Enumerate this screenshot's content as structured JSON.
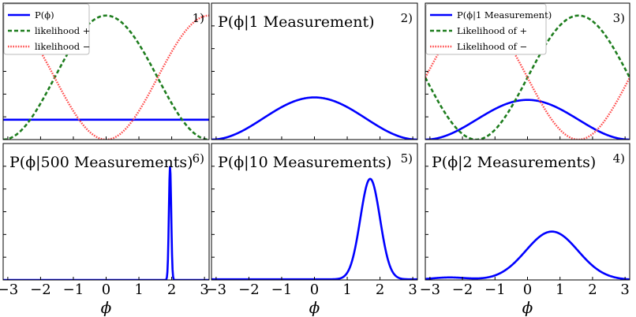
{
  "colors": {
    "posterior": "#0000ff",
    "likelihood_plus": "#1e7d1e",
    "likelihood_minus": "#ff4a4a"
  },
  "chart_data": [
    {
      "panel": "1)",
      "type": "line",
      "title": "",
      "xlim": [
        -3.14159,
        3.14159
      ],
      "ylim": [
        0,
        1.1
      ],
      "legend": {
        "placement": "top-left",
        "entries": [
          "P(ϕ)",
          "likelihood +",
          "likelihood −"
        ]
      },
      "series": [
        {
          "name": "P(ϕ)",
          "style": "solid",
          "color": "#0000ff",
          "kind": "constant",
          "value": 0.16
        },
        {
          "name": "likelihood +",
          "style": "dashed",
          "color": "#1e7d1e",
          "kind": "cos_plus"
        },
        {
          "name": "likelihood −",
          "style": "dotted",
          "color": "#ff4a4a",
          "kind": "cos_minus"
        }
      ]
    },
    {
      "panel": "2)",
      "type": "line",
      "title": "P(ϕ|1 Measurement)",
      "xlim": [
        -3.14159,
        3.14159
      ],
      "ylim": [
        0,
        1.1
      ],
      "series": [
        {
          "style": "solid",
          "color": "#0000ff",
          "kind": "posterior_cos",
          "scale": 0.34
        }
      ]
    },
    {
      "panel": "3)",
      "type": "line",
      "title": "",
      "xlim": [
        -3.14159,
        3.14159
      ],
      "ylim": [
        0,
        1.1
      ],
      "legend": {
        "placement": "top-left",
        "entries": [
          "P(ϕ|1 Measurement)",
          "Likelihood of +",
          "Likelihood of −"
        ]
      },
      "series": [
        {
          "name": "P(ϕ|1 Measurement)",
          "style": "solid",
          "color": "#0000ff",
          "kind": "posterior_cos",
          "scale": 0.32
        },
        {
          "name": "Likelihood of +",
          "style": "dashed",
          "color": "#1e7d1e",
          "kind": "sin_plus"
        },
        {
          "name": "Likelihood of −",
          "style": "dotted",
          "color": "#ff4a4a",
          "kind": "sin_minus"
        }
      ]
    },
    {
      "panel": "6)",
      "type": "line",
      "title": "P(ϕ|500 Measurements)",
      "xlim": [
        -3.14159,
        3.14159
      ],
      "ylim": [
        0,
        1.1
      ],
      "series": [
        {
          "style": "solid",
          "color": "#0000ff",
          "kind": "gaussian",
          "mu": 1.95,
          "sigma": 0.035,
          "peak": 0.92,
          "baseline": 0.0
        }
      ]
    },
    {
      "panel": "5)",
      "type": "line",
      "title": "P(ϕ|10 Measurements)",
      "xlim": [
        -3.14159,
        3.14159
      ],
      "ylim": [
        0,
        1.1
      ],
      "series": [
        {
          "style": "solid",
          "color": "#0000ff",
          "kind": "gaussian",
          "mu": 1.7,
          "sigma": 0.3,
          "peak": 0.81,
          "baseline": 0.005
        }
      ]
    },
    {
      "panel": "4)",
      "type": "line",
      "title": "P(ϕ|2 Measurements)",
      "xlim": [
        -3.14159,
        3.14159
      ],
      "ylim": [
        0,
        1.1
      ],
      "series": [
        {
          "style": "solid",
          "color": "#0000ff",
          "kind": "two_bump",
          "mu": 0.75,
          "sigma": 0.8,
          "peak": 0.39,
          "mu2": -2.4,
          "sigma2": 0.55,
          "peak2": 0.02
        }
      ]
    }
  ],
  "x_axis": {
    "ticks": [
      -3,
      -2,
      -1,
      0,
      1,
      2,
      3
    ],
    "tick_labels": [
      "−3",
      "−2",
      "−1",
      "0",
      "1",
      "2",
      "3"
    ],
    "label": "ϕ"
  }
}
